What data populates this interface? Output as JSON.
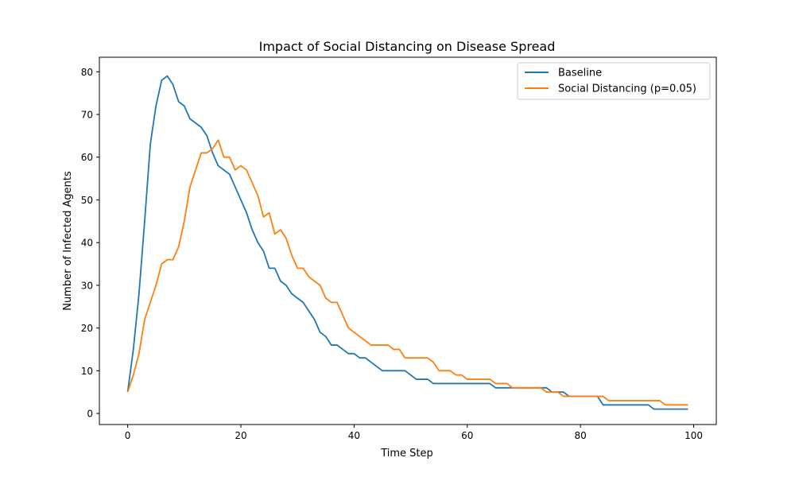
{
  "chart_data": {
    "type": "line",
    "title": "Impact of Social Distancing on Disease Spread",
    "xlabel": "Time Step",
    "ylabel": "Number of Infected Agents",
    "xlim": [
      -5,
      104
    ],
    "ylim": [
      -2.6,
      83.4
    ],
    "xticks": [
      0,
      20,
      40,
      60,
      80,
      100
    ],
    "yticks": [
      0,
      10,
      20,
      30,
      40,
      50,
      60,
      70,
      80
    ],
    "grid": false,
    "legend_position": "top-right",
    "series": [
      {
        "name": "Baseline",
        "color": "#1f77b4",
        "x": [
          0,
          1,
          2,
          3,
          4,
          5,
          6,
          7,
          8,
          9,
          10,
          11,
          12,
          13,
          14,
          15,
          16,
          17,
          18,
          19,
          20,
          21,
          22,
          23,
          24,
          25,
          26,
          27,
          28,
          29,
          30,
          31,
          32,
          33,
          34,
          35,
          36,
          37,
          38,
          39,
          40,
          41,
          42,
          43,
          44,
          45,
          46,
          47,
          48,
          49,
          50,
          51,
          52,
          53,
          54,
          55,
          56,
          57,
          58,
          59,
          60,
          61,
          62,
          63,
          64,
          65,
          66,
          67,
          68,
          69,
          70,
          71,
          72,
          73,
          74,
          75,
          76,
          77,
          78,
          79,
          80,
          81,
          82,
          83,
          84,
          85,
          86,
          87,
          88,
          89,
          90,
          91,
          92,
          93,
          94,
          95,
          96,
          97,
          98,
          99
        ],
        "y": [
          5,
          15,
          28,
          45,
          63,
          72,
          78,
          79,
          77,
          73,
          72,
          69,
          68,
          67,
          65,
          61,
          58,
          57,
          56,
          53,
          50,
          47,
          43,
          40,
          38,
          34,
          34,
          31,
          30,
          28,
          27,
          26,
          24,
          22,
          19,
          18,
          16,
          16,
          15,
          14,
          14,
          13,
          13,
          12,
          11,
          10,
          10,
          10,
          10,
          10,
          9,
          8,
          8,
          8,
          7,
          7,
          7,
          7,
          7,
          7,
          7,
          7,
          7,
          7,
          7,
          6,
          6,
          6,
          6,
          6,
          6,
          6,
          6,
          6,
          6,
          5,
          5,
          5,
          4,
          4,
          4,
          4,
          4,
          4,
          2,
          2,
          2,
          2,
          2,
          2,
          2,
          2,
          2,
          1,
          1,
          1,
          1,
          1,
          1,
          1
        ]
      },
      {
        "name": "Social Distancing (p=0.05)",
        "color": "#ff7f0e",
        "x": [
          0,
          1,
          2,
          3,
          4,
          5,
          6,
          7,
          8,
          9,
          10,
          11,
          12,
          13,
          14,
          15,
          16,
          17,
          18,
          19,
          20,
          21,
          22,
          23,
          24,
          25,
          26,
          27,
          28,
          29,
          30,
          31,
          32,
          33,
          34,
          35,
          36,
          37,
          38,
          39,
          40,
          41,
          42,
          43,
          44,
          45,
          46,
          47,
          48,
          49,
          50,
          51,
          52,
          53,
          54,
          55,
          56,
          57,
          58,
          59,
          60,
          61,
          62,
          63,
          64,
          65,
          66,
          67,
          68,
          69,
          70,
          71,
          72,
          73,
          74,
          75,
          76,
          77,
          78,
          79,
          80,
          81,
          82,
          83,
          84,
          85,
          86,
          87,
          88,
          89,
          90,
          91,
          92,
          93,
          94,
          95,
          96,
          97,
          98,
          99
        ],
        "y": [
          5,
          9,
          14,
          22,
          26,
          30,
          35,
          36,
          36,
          39,
          45,
          53,
          57,
          61,
          61,
          62,
          64,
          60,
          60,
          57,
          58,
          57,
          54,
          51,
          46,
          47,
          42,
          43,
          41,
          37,
          34,
          34,
          32,
          31,
          30,
          27,
          26,
          26,
          23,
          20,
          19,
          18,
          17,
          16,
          16,
          16,
          16,
          15,
          15,
          13,
          13,
          13,
          13,
          13,
          12,
          10,
          10,
          10,
          9,
          9,
          8,
          8,
          8,
          8,
          8,
          7,
          7,
          7,
          6,
          6,
          6,
          6,
          6,
          6,
          5,
          5,
          5,
          4,
          4,
          4,
          4,
          4,
          4,
          4,
          4,
          3,
          3,
          3,
          3,
          3,
          3,
          3,
          3,
          3,
          3,
          2,
          2,
          2,
          2,
          2
        ]
      }
    ]
  }
}
